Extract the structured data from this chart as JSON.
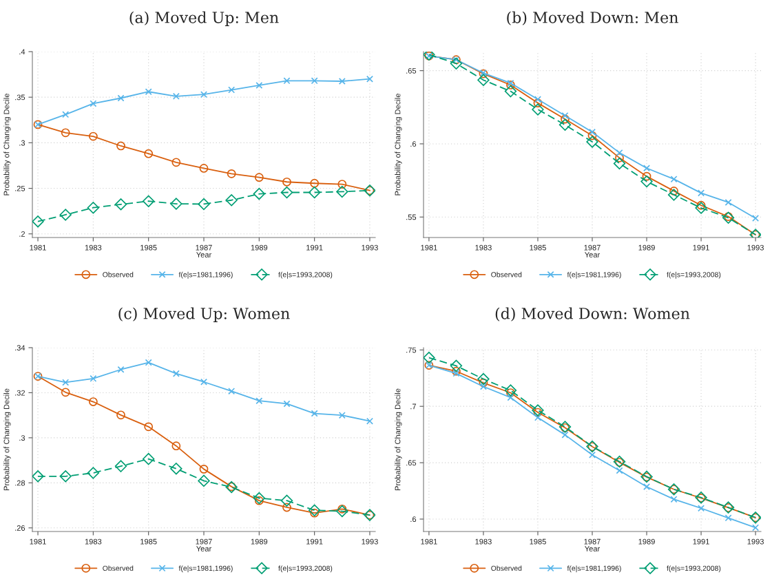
{
  "chart_data": [
    {
      "type": "line",
      "title": "(a) Moved Up: Men",
      "xlabel": "Year",
      "ylabel": "Probability of Changing Decile",
      "x": [
        1981,
        1982,
        1983,
        1984,
        1985,
        1986,
        1987,
        1988,
        1989,
        1990,
        1991,
        1992,
        1993
      ],
      "xlim": [
        1980.8,
        1993.2
      ],
      "xticks": [
        1981,
        1983,
        1985,
        1987,
        1989,
        1991,
        1993
      ],
      "ylim": [
        0.196,
        0.4
      ],
      "yticks": [
        {
          "value": 0.2,
          "label": ".2"
        },
        {
          "value": 0.25,
          "label": ".25"
        },
        {
          "value": 0.3,
          "label": ".3"
        },
        {
          "value": 0.35,
          "label": ".35"
        },
        {
          "value": 0.4,
          "label": ".4"
        }
      ],
      "grid": true,
      "legend": "bottom",
      "series": [
        {
          "name": "Observed",
          "color": "#d95f0e",
          "marker": "circle",
          "line_style": "solid",
          "values": [
            0.32,
            0.311,
            0.307,
            0.2965,
            0.288,
            0.2785,
            0.272,
            0.266,
            0.262,
            0.257,
            0.2555,
            0.2545,
            0.2476
          ]
        },
        {
          "name": "f(e|s=1981,1996)",
          "color": "#56b4e9",
          "marker": "cross",
          "line_style": "solid",
          "values": [
            0.32,
            0.331,
            0.343,
            0.349,
            0.356,
            0.351,
            0.353,
            0.358,
            0.363,
            0.368,
            0.368,
            0.3675,
            0.37
          ]
        },
        {
          "name": "f(e|s=1993,2008)",
          "color": "#009e73",
          "marker": "diamond",
          "line_style": "dashed",
          "values": [
            0.2136,
            0.221,
            0.2287,
            0.2324,
            0.2359,
            0.233,
            0.2327,
            0.237,
            0.2439,
            0.2455,
            0.2455,
            0.2463,
            0.2476
          ]
        }
      ]
    },
    {
      "type": "line",
      "title": "(b) Moved Down: Men",
      "xlabel": "Year",
      "ylabel": "Probability of Changing Decile",
      "x": [
        1981,
        1982,
        1983,
        1984,
        1985,
        1986,
        1987,
        1988,
        1989,
        1990,
        1991,
        1992,
        1993
      ],
      "xlim": [
        1980.8,
        1993.2
      ],
      "xticks": [
        1981,
        1983,
        1985,
        1987,
        1989,
        1991,
        1993
      ],
      "ylim": [
        0.536,
        0.663
      ],
      "yticks": [
        {
          "value": 0.55,
          "label": ".55"
        },
        {
          "value": 0.6,
          "label": ".6"
        },
        {
          "value": 0.65,
          "label": ".65"
        }
      ],
      "grid": true,
      "legend": "bottom",
      "series": [
        {
          "name": "Observed",
          "color": "#d95f0e",
          "marker": "circle",
          "line_style": "solid",
          "values": [
            0.6601,
            0.6575,
            0.6479,
            0.6402,
            0.6279,
            0.6169,
            0.6056,
            0.5904,
            0.5778,
            0.5678,
            0.558,
            0.5503,
            0.5379
          ]
        },
        {
          "name": "f(e|s=1981,1996)",
          "color": "#56b4e9",
          "marker": "cross",
          "line_style": "solid",
          "values": [
            0.66,
            0.6575,
            0.6484,
            0.6415,
            0.6304,
            0.6193,
            0.6081,
            0.5939,
            0.5834,
            0.5759,
            0.5664,
            0.56,
            0.5492
          ]
        },
        {
          "name": "f(e|s=1993,2008)",
          "color": "#009e73",
          "marker": "diamond",
          "line_style": "dashed",
          "values": [
            0.661,
            0.6549,
            0.6436,
            0.6359,
            0.6235,
            0.613,
            0.6014,
            0.5866,
            0.5743,
            0.5652,
            0.5562,
            0.5495,
            0.5379
          ]
        }
      ]
    },
    {
      "type": "line",
      "title": "(c) Moved Up: Women",
      "xlabel": "Year",
      "ylabel": "Probability of Changing Decile",
      "x": [
        1981,
        1982,
        1983,
        1984,
        1985,
        1986,
        1987,
        1988,
        1989,
        1990,
        1991,
        1992,
        1993
      ],
      "xlim": [
        1980.8,
        1993.2
      ],
      "xticks": [
        1981,
        1983,
        1985,
        1987,
        1989,
        1991,
        1993
      ],
      "ylim": [
        0.2584,
        0.34
      ],
      "yticks": [
        {
          "value": 0.26,
          "label": ".26"
        },
        {
          "value": 0.28,
          "label": ".28"
        },
        {
          "value": 0.3,
          "label": ".3"
        },
        {
          "value": 0.32,
          "label": ".32"
        },
        {
          "value": 0.34,
          "label": ".34"
        }
      ],
      "grid": true,
      "legend": "bottom",
      "series": [
        {
          "name": "Observed",
          "color": "#d95f0e",
          "marker": "circle",
          "line_style": "solid",
          "values": [
            0.3273,
            0.3202,
            0.316,
            0.3101,
            0.3049,
            0.2964,
            0.2861,
            0.2783,
            0.2721,
            0.2691,
            0.2666,
            0.2684,
            0.2657
          ]
        },
        {
          "name": "f(e|s=1981,1996)",
          "color": "#56b4e9",
          "marker": "cross",
          "line_style": "solid",
          "values": [
            0.3273,
            0.3246,
            0.3263,
            0.3303,
            0.3334,
            0.3285,
            0.3248,
            0.3207,
            0.3164,
            0.3151,
            0.3108,
            0.31,
            0.3074
          ]
        },
        {
          "name": "f(e|s=1993,2008)",
          "color": "#009e73",
          "marker": "diamond",
          "line_style": "dashed",
          "values": [
            0.2829,
            0.2829,
            0.2844,
            0.2874,
            0.2906,
            0.2863,
            0.2809,
            0.2781,
            0.2732,
            0.2721,
            0.2678,
            0.2674,
            0.2657
          ]
        }
      ]
    },
    {
      "type": "line",
      "title": "(d) Moved Down: Women",
      "xlabel": "Year",
      "ylabel": "Probability of Changing Decile",
      "x": [
        1981,
        1982,
        1983,
        1984,
        1985,
        1986,
        1987,
        1988,
        1989,
        1990,
        1991,
        1992,
        1993
      ],
      "xlim": [
        1980.8,
        1993.2
      ],
      "xticks": [
        1981,
        1983,
        1985,
        1987,
        1989,
        1991,
        1993
      ],
      "ylim": [
        0.589,
        0.752
      ],
      "yticks": [
        {
          "value": 0.6,
          "label": ".6"
        },
        {
          "value": 0.65,
          "label": ".65"
        },
        {
          "value": 0.7,
          "label": ".7"
        },
        {
          "value": 0.75,
          "label": ".75"
        }
      ],
      "grid": true,
      "legend": "bottom",
      "series": [
        {
          "name": "Observed",
          "color": "#d95f0e",
          "marker": "circle",
          "line_style": "solid",
          "values": [
            0.7364,
            0.7311,
            0.7208,
            0.712,
            0.6946,
            0.681,
            0.6642,
            0.6503,
            0.6373,
            0.6264,
            0.6187,
            0.6101,
            0.6013
          ]
        },
        {
          "name": "f(e|s=1981,1996)",
          "color": "#56b4e9",
          "marker": "cross",
          "line_style": "solid",
          "values": [
            0.7364,
            0.7292,
            0.7175,
            0.7078,
            0.69,
            0.6747,
            0.6569,
            0.643,
            0.6287,
            0.6176,
            0.6096,
            0.601,
            0.5924
          ]
        },
        {
          "name": "f(e|s=1993,2008)",
          "color": "#009e73",
          "marker": "diamond",
          "line_style": "dashed",
          "values": [
            0.7431,
            0.7359,
            0.7242,
            0.7141,
            0.6965,
            0.6818,
            0.6644,
            0.651,
            0.6376,
            0.6264,
            0.6191,
            0.6103,
            0.6013
          ]
        }
      ]
    }
  ]
}
